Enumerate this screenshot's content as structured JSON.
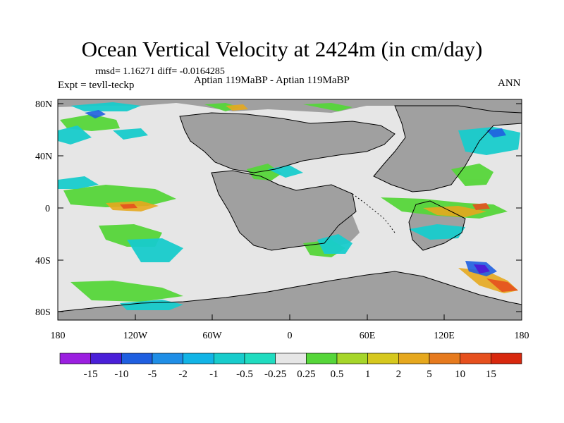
{
  "title": "Ocean Vertical Velocity at 2424m (in cm/day)",
  "stats": "rmsd= 1.16271 diff= -0.0164285",
  "experiment": "Expt = tevll-teckp",
  "period": "Aptian   119MaBP - Aptian   119MaBP",
  "season": "ANN",
  "lat_labels": [
    "80N",
    "40N",
    "0",
    "40S",
    "80S"
  ],
  "lon_labels": [
    "180",
    "120W",
    "60W",
    "0",
    "60E",
    "120E",
    "180"
  ],
  "colors": {
    "land": "#a0a0a0",
    "near_zero": "#e6e6e6",
    "coast": "#000000"
  },
  "colorbar": {
    "labels": [
      "-15",
      "-10",
      "-5",
      "-2",
      "-1",
      "-0.5",
      "-0.25",
      "0.25",
      "0.5",
      "1",
      "2",
      "5",
      "10",
      "15"
    ],
    "colors": [
      "#9b1fe0",
      "#4a1fd8",
      "#1f5fe0",
      "#1f8ee6",
      "#12b4e6",
      "#18cccc",
      "#20dcc0",
      "#e6e6e6",
      "#56d63a",
      "#a6d62a",
      "#d6c81e",
      "#e6a81e",
      "#e67a1e",
      "#e6501e",
      "#d8280e"
    ]
  }
}
